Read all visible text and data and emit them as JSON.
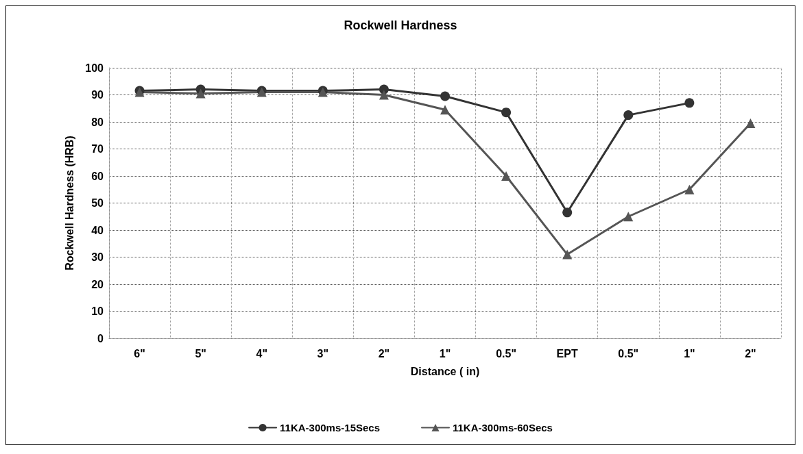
{
  "chart_data": {
    "type": "line",
    "title": "Rockwell Hardness",
    "xlabel": "Distance ( in)",
    "ylabel": "Rockwell Hardness (HRB)",
    "categories": [
      "6\"",
      "5\"",
      "4\"",
      "3\"",
      "2\"",
      "1\"",
      "0.5\"",
      "EPT",
      "0.5\"",
      "1\"",
      "2\""
    ],
    "series": [
      {
        "name": "11KA-300ms-15Secs",
        "color": "#333333",
        "marker": "circle",
        "values": [
          91.5,
          92,
          91.5,
          91.5,
          92,
          89.5,
          83.5,
          46.5,
          82.5,
          87,
          null
        ]
      },
      {
        "name": "11KA-300ms-60Secs",
        "color": "#555555",
        "marker": "triangle",
        "values": [
          91,
          90.5,
          91,
          91,
          90,
          84.5,
          60,
          31,
          45,
          55,
          79.5
        ]
      }
    ],
    "ylim": [
      0,
      100
    ],
    "yticks": [
      0,
      10,
      20,
      30,
      40,
      50,
      60,
      70,
      80,
      90,
      100
    ],
    "grid": true,
    "legend": "bottom",
    "line_style": "solid"
  }
}
